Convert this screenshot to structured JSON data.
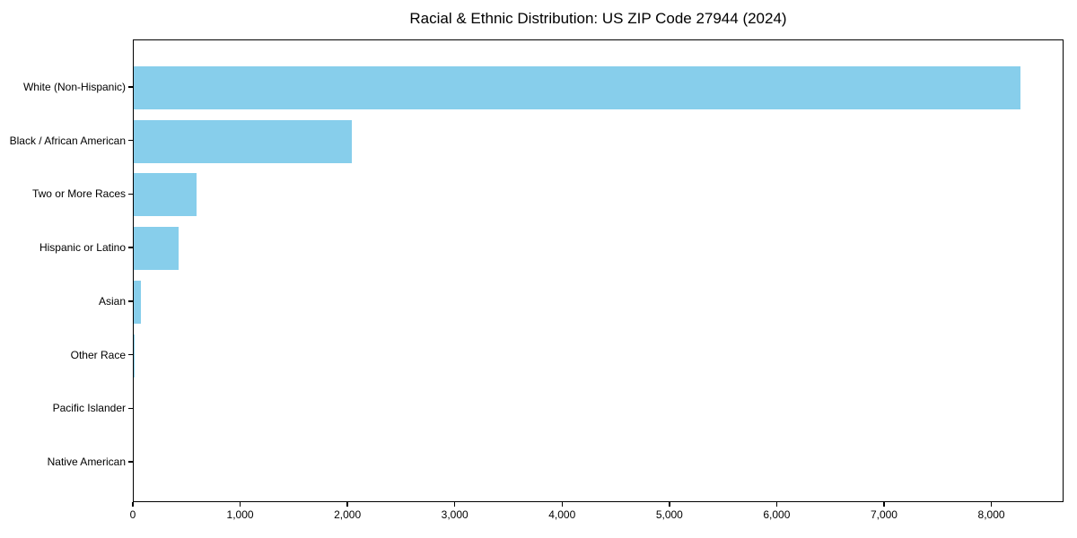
{
  "chart_data": {
    "type": "bar",
    "orientation": "horizontal",
    "title": "Racial & Ethnic Distribution: US ZIP Code 27944 (2024)",
    "categories": [
      "White (Non-Hispanic)",
      "Black / African American",
      "Two or More Races",
      "Hispanic or Latino",
      "Asian",
      "Other Race",
      "Pacific Islander",
      "Native American"
    ],
    "values": [
      8260,
      2035,
      585,
      420,
      65,
      5,
      0,
      0
    ],
    "bar_color": "#87CEEB",
    "xlim": [
      0,
      8673
    ],
    "x_ticks": [
      0,
      1000,
      2000,
      3000,
      4000,
      5000,
      6000,
      7000,
      8000
    ],
    "x_tick_labels": [
      "0",
      "1,000",
      "2,000",
      "3,000",
      "4,000",
      "5,000",
      "6,000",
      "7,000",
      "8,000"
    ],
    "xlabel": "",
    "ylabel": "",
    "grid": false,
    "legend_position": "none",
    "axis_color": "#000000",
    "background_color": "#ffffff"
  }
}
